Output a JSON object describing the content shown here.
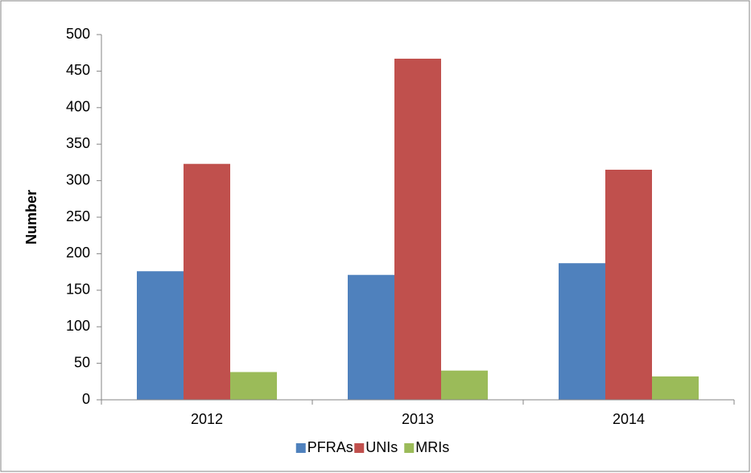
{
  "chart_data": {
    "type": "bar",
    "ylabel": "Number",
    "categories": [
      "2012",
      "2013",
      "2014"
    ],
    "series": [
      {
        "name": "PFRAs",
        "color": "#4f81bd",
        "values": [
          176,
          171,
          187
        ]
      },
      {
        "name": "UNIs",
        "color": "#c0504d",
        "values": [
          323,
          467,
          315
        ]
      },
      {
        "name": "MRIs",
        "color": "#9bbb59",
        "values": [
          38,
          40,
          32
        ]
      }
    ],
    "ylim": [
      0,
      500
    ],
    "yticks": [
      0,
      50,
      100,
      150,
      200,
      250,
      300,
      350,
      400,
      450,
      500
    ],
    "grid": false,
    "legend": "bottom"
  }
}
